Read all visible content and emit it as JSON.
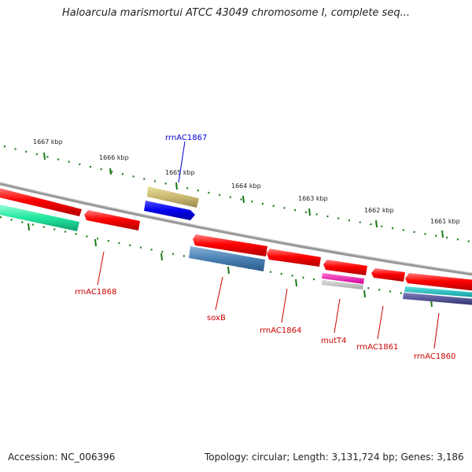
{
  "title": "Haloarcula marismortui ATCC 43049 chromosome I, complete seq...",
  "accession": "Accession: NC_006396",
  "summary": "Topology: circular; Length: 3,131,724 bp; Genes: 3,186",
  "scale_labels": [
    "1667 kbp",
    "1666 kbp",
    "1665 kbp",
    "1664 kbp",
    "1663 kbp",
    "1662 kbp",
    "1661 kbp"
  ],
  "gene_labels": {
    "rrnAC1867": "rrnAC1867",
    "rrnAC1868": "rrnAC1868",
    "soxB": "soxB",
    "rrnAC1864": "rrnAC1864",
    "mutT4": "mutT4",
    "rrnAC1861": "rrnAC1861",
    "rrnAC1860": "rrnAC1860"
  },
  "colors": {
    "gene_red": "#ff0000",
    "label_red": "#cc0000",
    "label_blue": "#0000cc",
    "backbone": "#888888",
    "tick_green": "#1a7a1a"
  }
}
